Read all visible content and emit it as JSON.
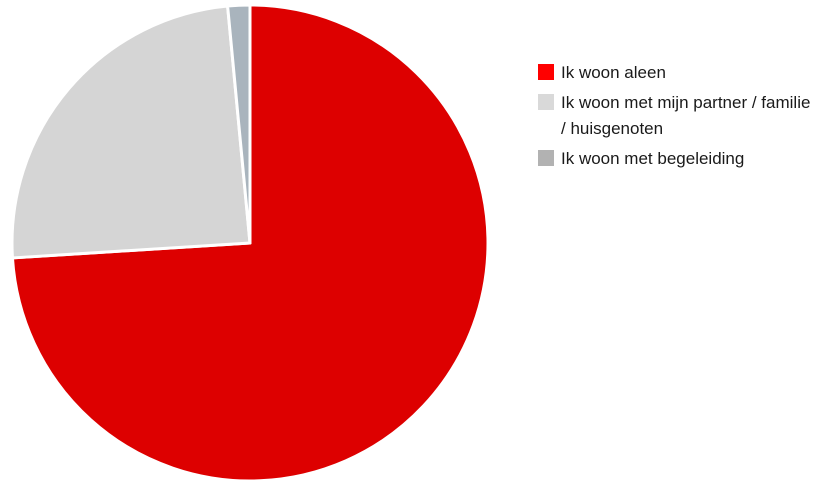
{
  "chart_data": {
    "type": "pie",
    "title": "",
    "slices": [
      {
        "label": "Ik woon aleen",
        "value": 74,
        "color": "#dd0000"
      },
      {
        "label": "Ik woon met mijn partner / familie / huisgenoten",
        "value": 24.5,
        "color": "#d5d5d5"
      },
      {
        "label": "Ik woon met begeleiding",
        "value": 1.5,
        "color": "#a9b4bd"
      }
    ],
    "start_angle_deg": 0,
    "direction": "clockwise",
    "legend_position": "right",
    "slice_separator_color": "#ffffff"
  },
  "legend": {
    "items": [
      {
        "label": "Ik woon aleen",
        "color": "#ff0000"
      },
      {
        "label": "Ik woon met mijn partner / familie / huisgenoten",
        "color": "#d9d9d9"
      },
      {
        "label": "Ik woon met begeleiding",
        "color": "#b2b2b2"
      }
    ]
  }
}
